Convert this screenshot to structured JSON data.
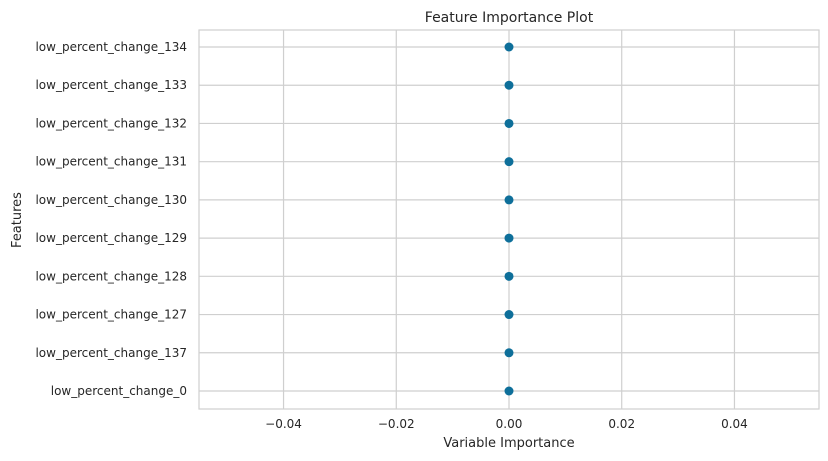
{
  "chart_data": {
    "type": "scatter",
    "title": "Feature Importance Plot",
    "xlabel": "Variable Importance",
    "ylabel": "Features",
    "xlim": [
      -0.055,
      0.055
    ],
    "xticks": [
      -0.04,
      -0.02,
      0.0,
      0.02,
      0.04
    ],
    "xtick_labels": [
      "−0.04",
      "−0.02",
      "0.00",
      "0.02",
      "0.04"
    ],
    "categories": [
      "low_percent_change_134",
      "low_percent_change_133",
      "low_percent_change_132",
      "low_percent_change_131",
      "low_percent_change_130",
      "low_percent_change_129",
      "low_percent_change_128",
      "low_percent_change_127",
      "low_percent_change_137",
      "low_percent_change_0"
    ],
    "values": [
      0,
      0,
      0,
      0,
      0,
      0,
      0,
      0,
      0,
      0
    ],
    "grid": true,
    "colors": {
      "point": "#0e6f9a",
      "grid": "#cfcfcf",
      "spine": "#cfcfcf",
      "text": "#262626"
    }
  }
}
